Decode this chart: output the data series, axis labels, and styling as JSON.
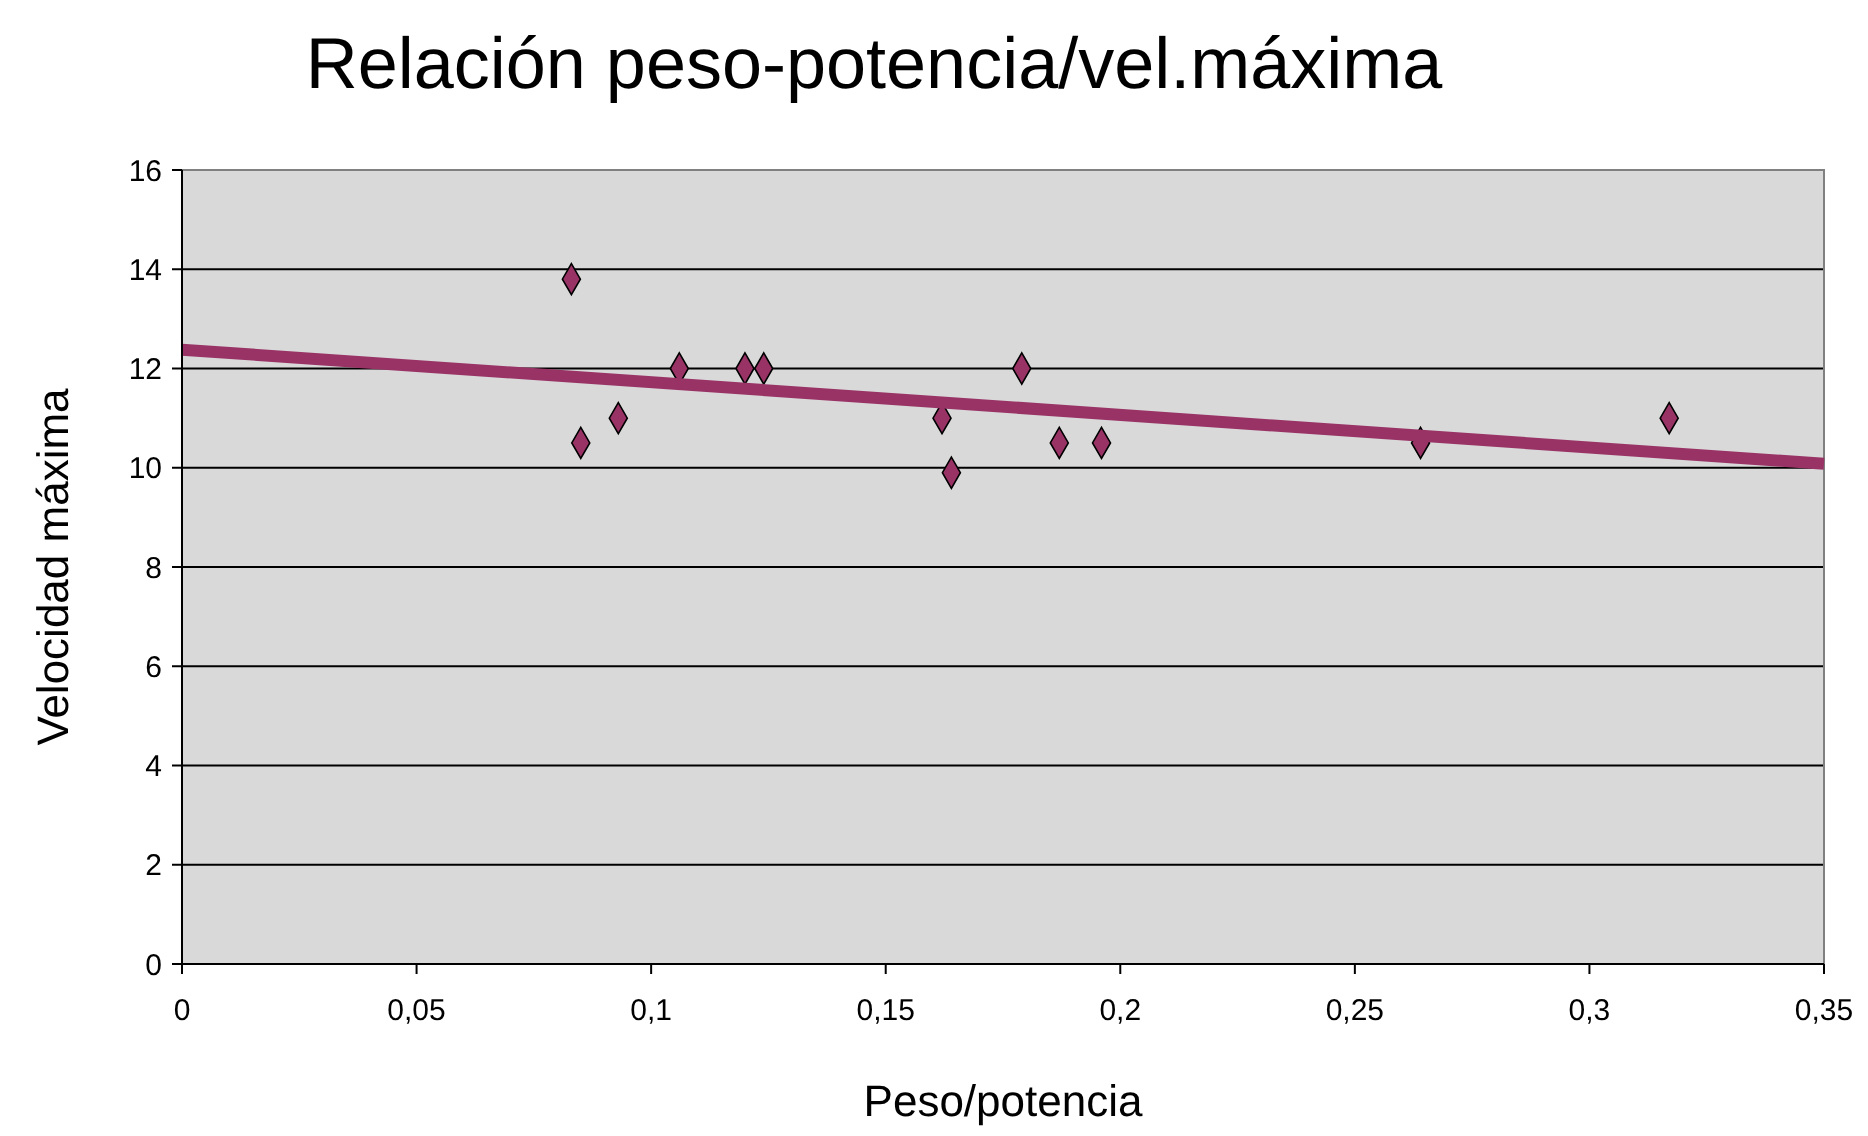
{
  "chart_data": {
    "type": "scatter",
    "title": "Relación peso-potencia/vel.máxima",
    "xlabel": "Peso/potencia",
    "ylabel": "Velocidad máxima",
    "series": [
      {
        "color": "#993366",
        "marker": "diamond",
        "x": [
          0.083,
          0.085,
          0.093,
          0.106,
          0.12,
          0.124,
          0.162,
          0.164,
          0.179,
          0.187,
          0.196,
          0.264,
          0.317
        ],
        "values": [
          13.8,
          10.5,
          11,
          12,
          12,
          12,
          11,
          9.9,
          12,
          10.5,
          10.5,
          10.5,
          11
        ]
      },
      {
        "type": "line",
        "color": "#993366",
        "marker": "none",
        "x": [
          0,
          0.35
        ],
        "values": [
          12.38,
          10.08
        ]
      }
    ],
    "xlim": [
      0,
      0.35
    ],
    "xticks": [
      0,
      {
        "value": 0.05,
        "label": "0,05"
      },
      {
        "value": 0.1,
        "label": "0,1"
      },
      {
        "value": 0.15,
        "label": "0,15"
      },
      {
        "value": 0.2,
        "label": "0,2"
      },
      {
        "value": 0.25,
        "label": "0,25"
      },
      {
        "value": 0.3,
        "label": "0,3"
      },
      {
        "value": 0.35,
        "label": "0,35"
      }
    ],
    "ylim": [
      0,
      16
    ],
    "yticks": [
      0,
      2,
      4,
      6,
      8,
      10,
      12,
      14,
      16
    ],
    "grid": "y"
  }
}
